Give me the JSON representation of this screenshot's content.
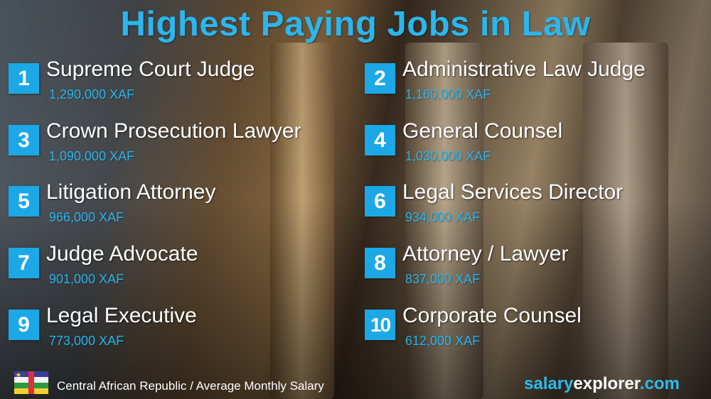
{
  "title": "Highest Paying Jobs in Law",
  "jobs": [
    {
      "rank": "1",
      "title": "Supreme Court Judge",
      "salary": "1,290,000 XAF"
    },
    {
      "rank": "2",
      "title": "Administrative Law Judge",
      "salary": "1,160,000 XAF"
    },
    {
      "rank": "3",
      "title": "Crown Prosecution Lawyer",
      "salary": "1,090,000 XAF"
    },
    {
      "rank": "4",
      "title": "General Counsel",
      "salary": "1,030,000 XAF"
    },
    {
      "rank": "5",
      "title": "Litigation Attorney",
      "salary": "966,000 XAF"
    },
    {
      "rank": "6",
      "title": "Legal Services Director",
      "salary": "934,000 XAF"
    },
    {
      "rank": "7",
      "title": "Judge Advocate",
      "salary": "901,000 XAF"
    },
    {
      "rank": "8",
      "title": "Attorney / Lawyer",
      "salary": "837,000 XAF"
    },
    {
      "rank": "9",
      "title": "Legal Executive",
      "salary": "773,000 XAF"
    },
    {
      "rank": "10",
      "title": "Corporate Counsel",
      "salary": "612,000 XAF"
    }
  ],
  "footer": {
    "caption": "Central African Republic / Average Monthly Salary",
    "brand_a": "salary",
    "brand_b": "explorer",
    "brand_c": ".com",
    "flag": "central-african-republic-flag"
  },
  "colors": {
    "accent": "#1ca8e6",
    "title": "#2bb6ee"
  }
}
